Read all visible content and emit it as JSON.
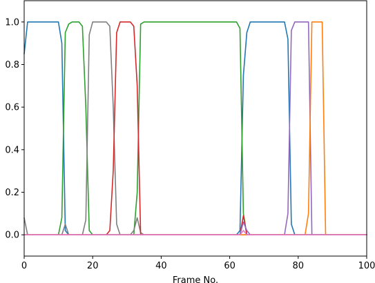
{
  "chart_data": {
    "type": "line",
    "title": "",
    "xlabel": "Frame No.",
    "ylabel": "",
    "xlim": [
      0,
      100
    ],
    "ylim": [
      -0.1,
      1.1
    ],
    "xticks": [
      0,
      20,
      40,
      60,
      80,
      100
    ],
    "yticks": [
      0.0,
      0.2,
      0.4,
      0.6,
      0.8,
      1.0
    ],
    "xtick_labels": [
      "0",
      "20",
      "40",
      "60",
      "80",
      "100"
    ],
    "ytick_labels": [
      "0.0",
      "0.2",
      "0.4",
      "0.6",
      "0.8",
      "1.0"
    ],
    "grid": false,
    "series": [
      {
        "color": "#1f77b4",
        "points": [
          [
            0,
            0.85
          ],
          [
            1,
            1.0
          ],
          [
            10,
            1.0
          ],
          [
            11,
            0.9
          ],
          [
            12,
            0.02
          ],
          [
            13,
            0.0
          ],
          [
            62,
            0.0
          ],
          [
            63,
            0.02
          ],
          [
            64,
            0.75
          ],
          [
            65,
            0.95
          ],
          [
            66,
            1.0
          ],
          [
            76,
            1.0
          ],
          [
            77,
            0.92
          ],
          [
            78,
            0.05
          ],
          [
            79,
            0.0
          ],
          [
            100,
            0.0
          ]
        ]
      },
      {
        "color": "#2ca02c",
        "points": [
          [
            0,
            0.0
          ],
          [
            10,
            0.0
          ],
          [
            11,
            0.08
          ],
          [
            12,
            0.95
          ],
          [
            13,
            0.99
          ],
          [
            14,
            1.0
          ],
          [
            16,
            1.0
          ],
          [
            17,
            0.98
          ],
          [
            18,
            0.6
          ],
          [
            19,
            0.02
          ],
          [
            20,
            0.0
          ],
          [
            32,
            0.0
          ],
          [
            33,
            0.2
          ],
          [
            34,
            0.99
          ],
          [
            35,
            1.0
          ],
          [
            62,
            1.0
          ],
          [
            63,
            0.97
          ],
          [
            64,
            0.1
          ],
          [
            65,
            0.0
          ],
          [
            100,
            0.0
          ]
        ]
      },
      {
        "color": "#7f7f7f",
        "points": [
          [
            0,
            0.08
          ],
          [
            1,
            0.0
          ],
          [
            11,
            0.0
          ],
          [
            12,
            0.05
          ],
          [
            13,
            0.0
          ],
          [
            17,
            0.0
          ],
          [
            18,
            0.07
          ],
          [
            19,
            0.94
          ],
          [
            20,
            1.0
          ],
          [
            24,
            1.0
          ],
          [
            25,
            0.98
          ],
          [
            26,
            0.6
          ],
          [
            27,
            0.05
          ],
          [
            28,
            0.0
          ],
          [
            31,
            0.0
          ],
          [
            32,
            0.02
          ],
          [
            33,
            0.08
          ],
          [
            34,
            0.01
          ],
          [
            35,
            0.0
          ],
          [
            100,
            0.0
          ]
        ]
      },
      {
        "color": "#d62728",
        "points": [
          [
            0,
            0.0
          ],
          [
            24,
            0.0
          ],
          [
            25,
            0.02
          ],
          [
            26,
            0.3
          ],
          [
            27,
            0.95
          ],
          [
            28,
            1.0
          ],
          [
            31,
            1.0
          ],
          [
            32,
            0.98
          ],
          [
            33,
            0.7
          ],
          [
            34,
            0.0
          ],
          [
            63,
            0.0
          ],
          [
            64,
            0.09
          ],
          [
            65,
            0.0
          ],
          [
            100,
            0.0
          ]
        ]
      },
      {
        "color": "#9467bd",
        "points": [
          [
            0,
            0.0
          ],
          [
            63,
            0.0
          ],
          [
            64,
            0.06
          ],
          [
            65,
            0.02
          ],
          [
            66,
            0.0
          ],
          [
            76,
            0.0
          ],
          [
            77,
            0.1
          ],
          [
            78,
            0.96
          ],
          [
            79,
            1.0
          ],
          [
            83,
            1.0
          ],
          [
            84,
            0.0
          ],
          [
            100,
            0.0
          ]
        ]
      },
      {
        "color": "#ff7f0e",
        "points": [
          [
            0,
            0.0
          ],
          [
            82,
            0.0
          ],
          [
            83,
            0.1
          ],
          [
            84,
            1.0
          ],
          [
            87,
            1.0
          ],
          [
            88,
            0.0
          ],
          [
            100,
            0.0
          ]
        ]
      },
      {
        "color": "#e377c2",
        "points": [
          [
            0,
            0.0
          ],
          [
            63,
            0.0
          ],
          [
            64,
            0.02
          ],
          [
            65,
            0.0
          ],
          [
            100,
            0.0
          ]
        ]
      }
    ]
  }
}
